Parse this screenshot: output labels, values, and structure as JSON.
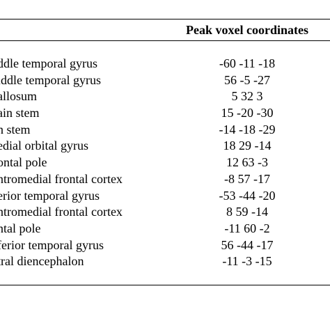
{
  "table": {
    "header": {
      "coords_label": "Peak voxel coordinates"
    },
    "rows": [
      {
        "region": "ddle temporal gyrus",
        "coords": "-60 -11 -18"
      },
      {
        "region": "iddle temporal gyrus",
        "coords": "56 -5 -27"
      },
      {
        "region": "allosum",
        "coords": "5 32 3"
      },
      {
        "region": "ain stem",
        "coords": "15 -20 -30"
      },
      {
        "region": "n stem",
        "coords": "-14 -18 -29"
      },
      {
        "region": "edial orbital gyrus",
        "coords": "18 29 -14"
      },
      {
        "region": "ontal pole",
        "coords": "12 63 -3"
      },
      {
        "region": "ntromedial frontal cortex",
        "coords": "-8 57 -17"
      },
      {
        "region": "erior temporal gyrus",
        "coords": "-53 -44 -20"
      },
      {
        "region": "ntromedial frontal cortex",
        "coords": "8 59 -14"
      },
      {
        "region": "ntal pole",
        "coords": "-11 60 -2"
      },
      {
        "region": "ferior temporal gyrus",
        "coords": "56 -44 -17"
      },
      {
        "region": "tral diencephalon",
        "coords": "-11 -3 -15"
      }
    ]
  }
}
